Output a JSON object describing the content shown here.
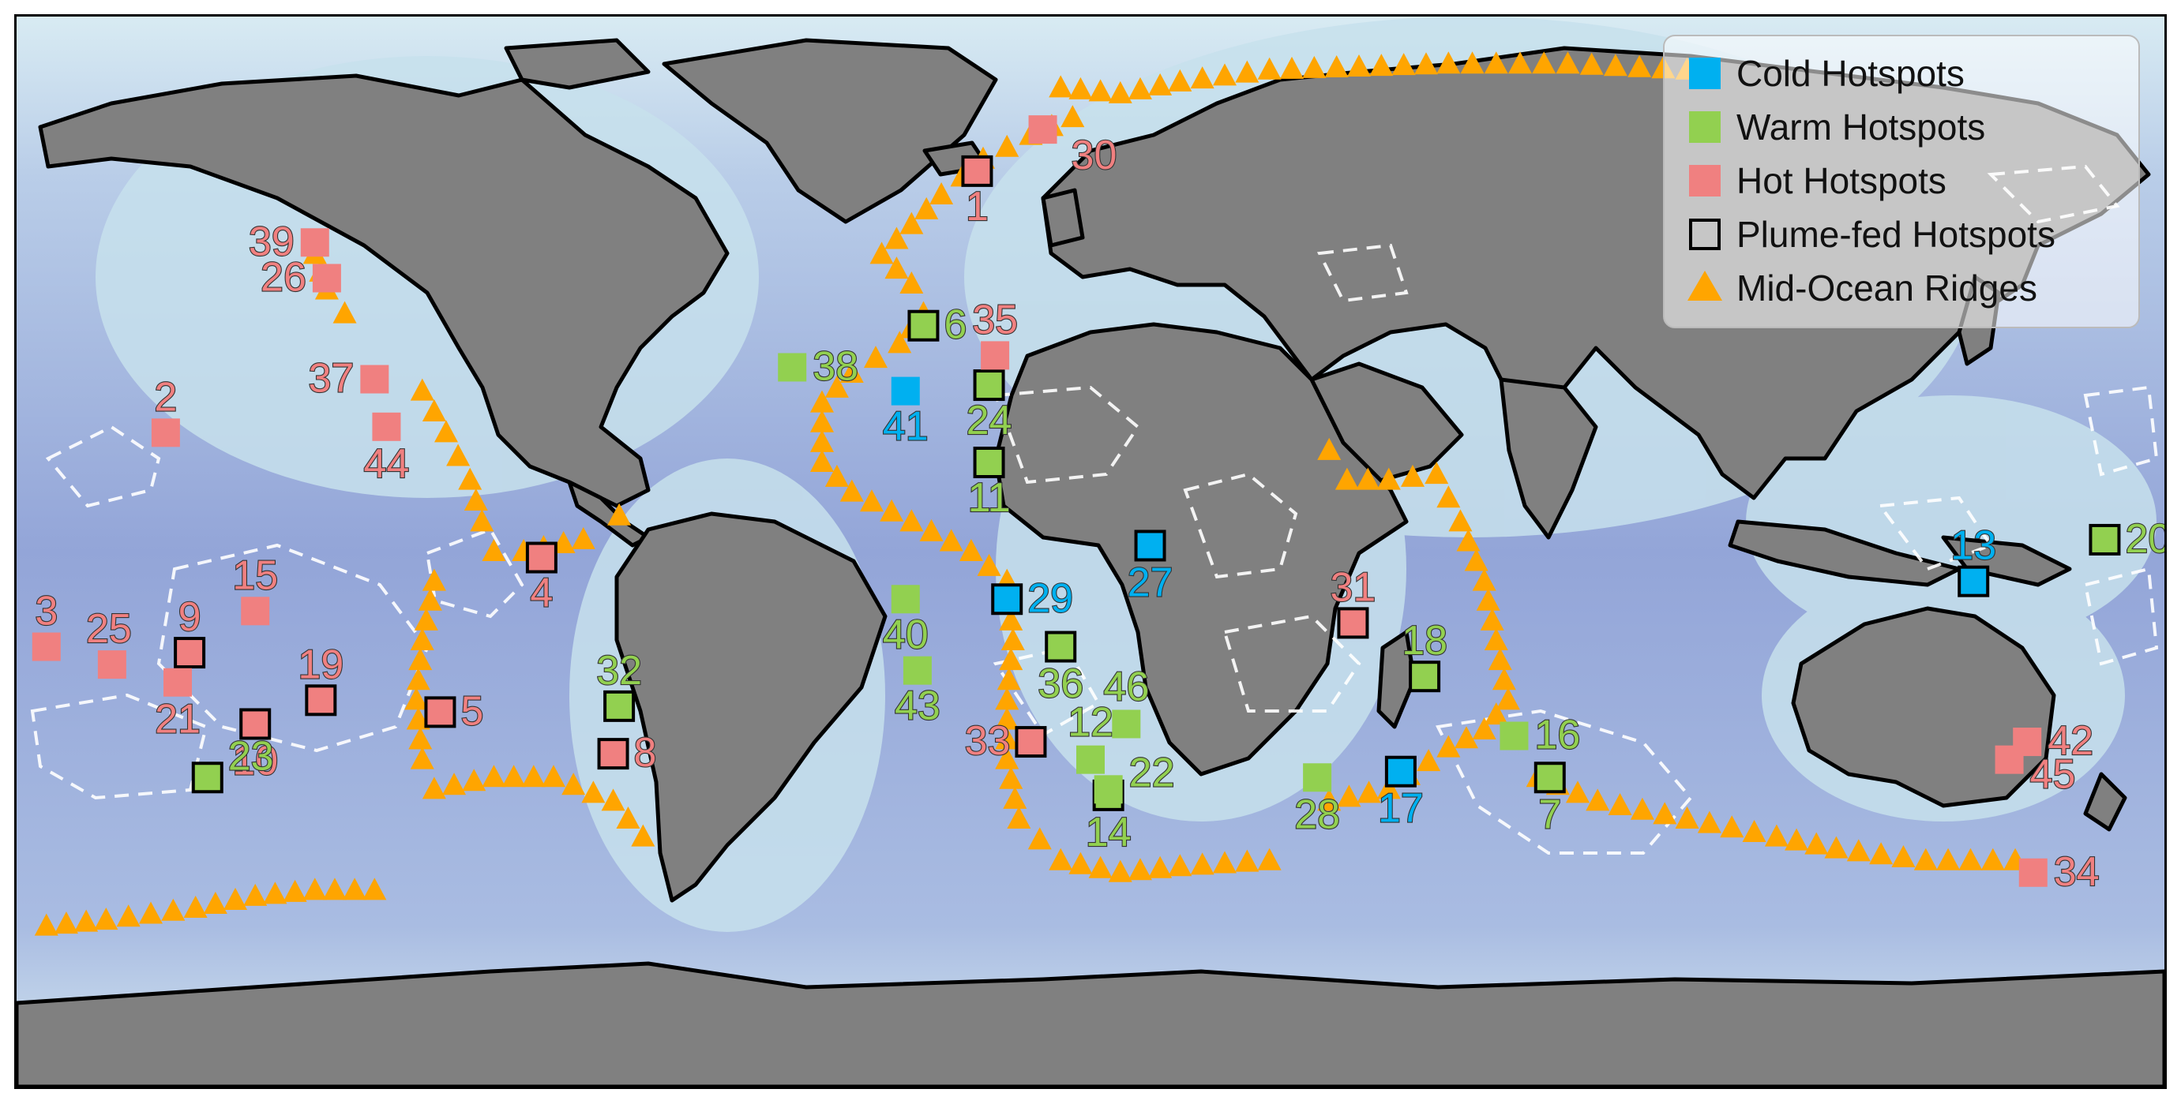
{
  "colors": {
    "cold": "#00b0f0",
    "warm": "#92d050",
    "hot": "#f08080",
    "ridge": "#ffa500",
    "land": "#808080",
    "ocean_deep": "#8e9fd6",
    "ocean_shallow": "#cfe6ef",
    "ice": "#e8f3f8"
  },
  "legend": {
    "cold": "Cold Hotspots",
    "warm": "Warm Hotspots",
    "hot": "Hot Hotspots",
    "plume": "Plume-fed Hotspots",
    "ridge": "Mid-Ocean Ridges"
  },
  "icons": [
    "square-marker-icon",
    "triangle-marker-icon"
  ],
  "hotspots": [
    {
      "id": "1",
      "lon": -19,
      "lat": 64,
      "type": "hot",
      "plume": true
    },
    {
      "id": "2",
      "lon": -155,
      "lat": 20,
      "type": "hot",
      "plume": false
    },
    {
      "id": "3",
      "lon": -175,
      "lat": -16,
      "type": "hot",
      "plume": false
    },
    {
      "id": "4",
      "lon": -92,
      "lat": -1,
      "type": "hot",
      "plume": true
    },
    {
      "id": "5",
      "lon": -109,
      "lat": -27,
      "type": "hot",
      "plume": true
    },
    {
      "id": "6",
      "lon": -28,
      "lat": 38,
      "type": "warm",
      "plume": true
    },
    {
      "id": "7",
      "lon": 77,
      "lat": -38,
      "type": "warm",
      "plume": true
    },
    {
      "id": "8",
      "lon": -80,
      "lat": -34,
      "type": "hot",
      "plume": true
    },
    {
      "id": "9",
      "lon": -151,
      "lat": -17,
      "type": "hot",
      "plume": true
    },
    {
      "id": "10",
      "lon": -140,
      "lat": -29,
      "type": "hot",
      "plume": true
    },
    {
      "id": "11",
      "lon": -17,
      "lat": 15,
      "type": "warm",
      "plume": true
    },
    {
      "id": "12",
      "lon": 0,
      "lat": -35,
      "type": "warm",
      "plume": false
    },
    {
      "id": "13",
      "lon": 148,
      "lat": -5,
      "type": "cold",
      "plume": true
    },
    {
      "id": "14",
      "lon": 3,
      "lat": -41,
      "type": "warm",
      "plume": true
    },
    {
      "id": "15",
      "lon": -140,
      "lat": -10,
      "type": "hot",
      "plume": false
    },
    {
      "id": "16",
      "lon": 71,
      "lat": -31,
      "type": "warm",
      "plume": false
    },
    {
      "id": "17",
      "lon": 52,
      "lat": -37,
      "type": "cold",
      "plume": true
    },
    {
      "id": "18",
      "lon": 56,
      "lat": -21,
      "type": "warm",
      "plume": true
    },
    {
      "id": "19",
      "lon": -129,
      "lat": -25,
      "type": "hot",
      "plume": true
    },
    {
      "id": "20",
      "lon": 170,
      "lat": 2,
      "type": "warm",
      "plume": true
    },
    {
      "id": "21",
      "lon": -153,
      "lat": -22,
      "type": "hot",
      "plume": false
    },
    {
      "id": "22",
      "lon": 3,
      "lat": -40,
      "type": "warm",
      "plume": false
    },
    {
      "id": "23",
      "lon": -148,
      "lat": -38,
      "type": "warm",
      "plume": true
    },
    {
      "id": "24",
      "lon": -17,
      "lat": 28,
      "type": "warm",
      "plume": true
    },
    {
      "id": "25",
      "lon": -164,
      "lat": -19,
      "type": "hot",
      "plume": false
    },
    {
      "id": "26",
      "lon": -128,
      "lat": 46,
      "type": "hot",
      "plume": false
    },
    {
      "id": "27",
      "lon": 10,
      "lat": 1,
      "type": "cold",
      "plume": true
    },
    {
      "id": "28",
      "lon": 38,
      "lat": -38,
      "type": "warm",
      "plume": false
    },
    {
      "id": "29",
      "lon": -14,
      "lat": -8,
      "type": "cold",
      "plume": true
    },
    {
      "id": "30",
      "lon": -8,
      "lat": 71,
      "type": "hot",
      "plume": false
    },
    {
      "id": "31",
      "lon": 44,
      "lat": -12,
      "type": "hot",
      "plume": true
    },
    {
      "id": "32",
      "lon": -79,
      "lat": -26,
      "type": "warm",
      "plume": true
    },
    {
      "id": "33",
      "lon": -10,
      "lat": -32,
      "type": "hot",
      "plume": true
    },
    {
      "id": "34",
      "lon": 158,
      "lat": -54,
      "type": "hot",
      "plume": false
    },
    {
      "id": "35",
      "lon": -16,
      "lat": 33,
      "type": "hot",
      "plume": false
    },
    {
      "id": "36",
      "lon": -5,
      "lat": -16,
      "type": "warm",
      "plume": true
    },
    {
      "id": "37",
      "lon": -120,
      "lat": 29,
      "type": "hot",
      "plume": false
    },
    {
      "id": "38",
      "lon": -50,
      "lat": 31,
      "type": "warm",
      "plume": false
    },
    {
      "id": "39",
      "lon": -130,
      "lat": 52,
      "type": "hot",
      "plume": false
    },
    {
      "id": "40",
      "lon": -31,
      "lat": -8,
      "type": "warm",
      "plume": false
    },
    {
      "id": "41",
      "lon": -31,
      "lat": 27,
      "type": "cold",
      "plume": false
    },
    {
      "id": "42",
      "lon": 157,
      "lat": -32,
      "type": "hot",
      "plume": false
    },
    {
      "id": "43",
      "lon": -29,
      "lat": -20,
      "type": "warm",
      "plume": false
    },
    {
      "id": "44",
      "lon": -118,
      "lat": 21,
      "type": "hot",
      "plume": false
    },
    {
      "id": "45",
      "lon": 154,
      "lat": -35,
      "type": "hot",
      "plume": false
    },
    {
      "id": "46",
      "lon": 6,
      "lat": -29,
      "type": "warm",
      "plume": false
    }
  ]
}
